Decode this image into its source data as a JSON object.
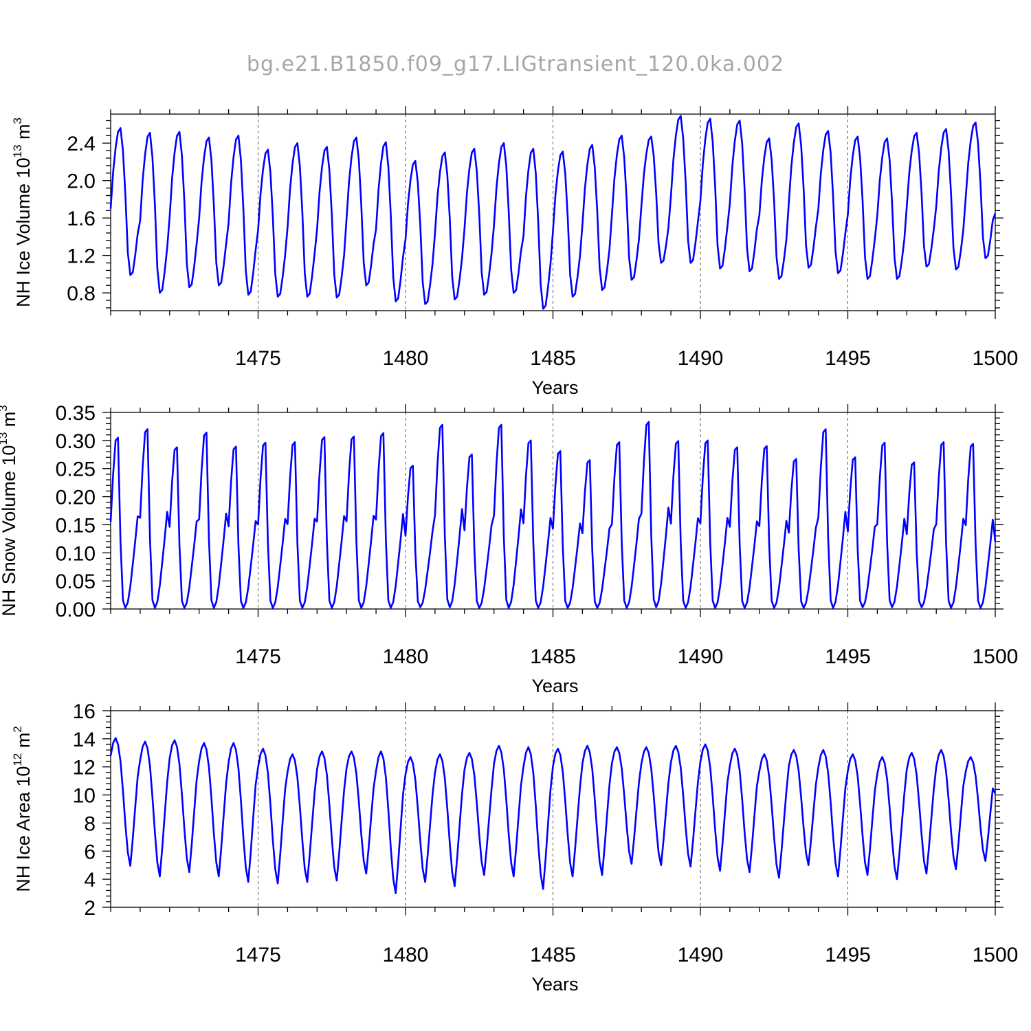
{
  "title": "bg.e21.B1850.f09_g17.LIGtransient_120.0ka.002",
  "colors": {
    "series": "#0000ff",
    "grid": "#555555",
    "title": "#a6a6a6"
  },
  "chart_data": [
    {
      "type": "line",
      "ylabel": {
        "text": "NH Ice Volume 10",
        "sup": "13",
        "unit": " m",
        "unit_sup": "3"
      },
      "xlabel": "Years",
      "xlim": [
        1470.0,
        1500.0
      ],
      "ylim": [
        0.61,
        2.71
      ],
      "xticks": [
        1475,
        1480,
        1485,
        1490,
        1495,
        1500
      ],
      "yticks": [
        0.8,
        1.2,
        1.6,
        2.0,
        2.4
      ],
      "ytick_labels": [
        "0.8",
        "1.2",
        "1.6",
        "2.0",
        "2.4"
      ],
      "grid_x": true,
      "cycle": {
        "start": 1470.0,
        "months": 12,
        "phase_values": [
          1.7,
          2.09,
          2.35,
          2.52,
          2.56,
          2.32,
          1.85,
          1.23,
          0.99,
          1.02,
          1.2,
          1.43
        ]
      },
      "annual": {
        "max": [
          2.56,
          2.51,
          2.52,
          2.46,
          2.48,
          2.33,
          2.4,
          2.36,
          2.46,
          2.41,
          2.21,
          2.3,
          2.34,
          2.4,
          2.34,
          2.31,
          2.38,
          2.48,
          2.47,
          2.69,
          2.66,
          2.64,
          2.45,
          2.61,
          2.53,
          2.47,
          2.45,
          2.51,
          2.55,
          2.62
        ],
        "min": [
          0.99,
          0.8,
          0.86,
          0.88,
          0.78,
          0.76,
          0.76,
          0.75,
          0.88,
          0.71,
          0.68,
          0.73,
          0.78,
          0.8,
          0.63,
          0.76,
          0.83,
          0.94,
          1.12,
          1.12,
          1.06,
          1.03,
          0.95,
          1.07,
          1.01,
          0.95,
          0.95,
          1.08,
          1.05,
          1.17
        ]
      },
      "end_value": 1.65
    },
    {
      "type": "line",
      "ylabel": {
        "text": "NH Snow Volume 10",
        "sup": "13",
        "unit": " m",
        "unit_sup": "3"
      },
      "xlabel": "Years",
      "xlim": [
        1470.0,
        1500.0
      ],
      "ylim": [
        0.0,
        0.35
      ],
      "xticks": [
        1475,
        1480,
        1485,
        1490,
        1495,
        1500
      ],
      "yticks": [
        0.0,
        0.05,
        0.1,
        0.15,
        0.2,
        0.25,
        0.3,
        0.35
      ],
      "ytick_labels": [
        "0.00",
        "0.05",
        "0.10",
        "0.15",
        "0.20",
        "0.25",
        "0.30",
        "0.35"
      ],
      "grid_x": true,
      "cycle": {
        "start": 1470.0,
        "months": 12,
        "phase_values": [
          0.155,
          0.24,
          0.3,
          0.305,
          0.12,
          0.015,
          0.002,
          0.012,
          0.04,
          0.08,
          0.12,
          0.165
        ]
      },
      "annual": {
        "max": [
          0.305,
          0.32,
          0.288,
          0.314,
          0.289,
          0.296,
          0.297,
          0.306,
          0.307,
          0.313,
          0.255,
          0.328,
          0.275,
          0.328,
          0.3,
          0.281,
          0.265,
          0.297,
          0.333,
          0.299,
          0.3,
          0.288,
          0.29,
          0.267,
          0.32,
          0.27,
          0.296,
          0.261,
          0.297,
          0.294
        ],
        "min": [
          0.002,
          0.002,
          0.002,
          0.002,
          0.002,
          0.002,
          0.002,
          0.002,
          0.002,
          0.002,
          0.003,
          0.003,
          0.002,
          0.002,
          0.002,
          0.002,
          0.002,
          0.002,
          0.003,
          0.002,
          0.002,
          0.002,
          0.002,
          0.002,
          0.002,
          0.003,
          0.003,
          0.003,
          0.002,
          0.002
        ]
      },
      "end_value": 0.12
    },
    {
      "type": "line",
      "ylabel": {
        "text": "NH Ice Area 10",
        "sup": "12",
        "unit": " m",
        "unit_sup": "2"
      },
      "xlabel": "Years",
      "xlim": [
        1470.0,
        1500.0
      ],
      "ylim": [
        2.0,
        16.0
      ],
      "xticks": [
        1475,
        1480,
        1485,
        1490,
        1495,
        1500
      ],
      "yticks": [
        2,
        4,
        6,
        8,
        10,
        12,
        14,
        16
      ],
      "ytick_labels": [
        "2",
        "4",
        "6",
        "8",
        "10",
        "12",
        "14",
        "16"
      ],
      "grid_x": true,
      "cycle": {
        "start": 1470.0,
        "months": 12,
        "phase_values": [
          12.8,
          13.7,
          14.05,
          13.6,
          12.4,
          10.3,
          7.9,
          5.9,
          4.95,
          6.9,
          9.1,
          11.3
        ]
      },
      "annual": {
        "max": [
          14.05,
          13.8,
          13.9,
          13.7,
          13.7,
          13.3,
          12.9,
          13.1,
          13.1,
          13.1,
          12.7,
          12.9,
          13.0,
          13.5,
          13.4,
          13.3,
          13.5,
          13.4,
          13.4,
          13.5,
          13.6,
          13.3,
          12.9,
          13.2,
          13.2,
          12.9,
          12.7,
          13.0,
          13.2,
          12.7
        ],
        "min": [
          4.95,
          4.2,
          4.5,
          4.2,
          3.8,
          3.7,
          3.8,
          3.9,
          4.4,
          3.0,
          3.8,
          3.5,
          4.3,
          4.2,
          3.3,
          4.2,
          4.3,
          5.1,
          5.0,
          4.9,
          4.6,
          4.5,
          4.1,
          5.0,
          4.2,
          4.3,
          4.0,
          4.4,
          4.7,
          5.3
        ]
      },
      "end_value": 10.1
    }
  ]
}
